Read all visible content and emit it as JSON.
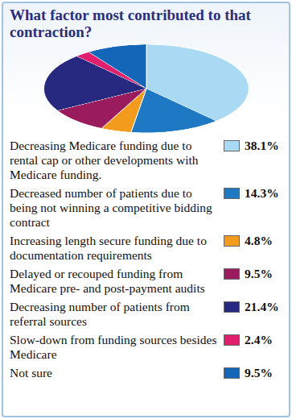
{
  "chart_data": {
    "type": "pie",
    "title": "What factor most contributed to that contraction?",
    "categories": [
      "Decreasing Medicare funding due to rental cap or other developments with Medicare funding.",
      "Decreased number of patients due to being not winning a competitive bidding contract",
      "Increasing length secure funding due to documentation requirements",
      "Delayed or recouped funding from Medicare pre- and post-payment audits",
      "Decreasing number of patients from referral sources",
      "Slow-down from funding sources besides Medicare",
      "Not sure"
    ],
    "values": [
      38.1,
      14.3,
      4.8,
      9.5,
      21.4,
      2.4,
      9.5
    ],
    "value_labels": [
      "38.1%",
      "14.3%",
      "4.8%",
      "9.5%",
      "21.4%",
      "2.4%",
      "9.5%"
    ],
    "colors": [
      "#a9d9f3",
      "#1f78c4",
      "#f29b1d",
      "#9b1c5e",
      "#27287f",
      "#e0206e",
      "#1466b8"
    ],
    "legend": "bottom"
  }
}
